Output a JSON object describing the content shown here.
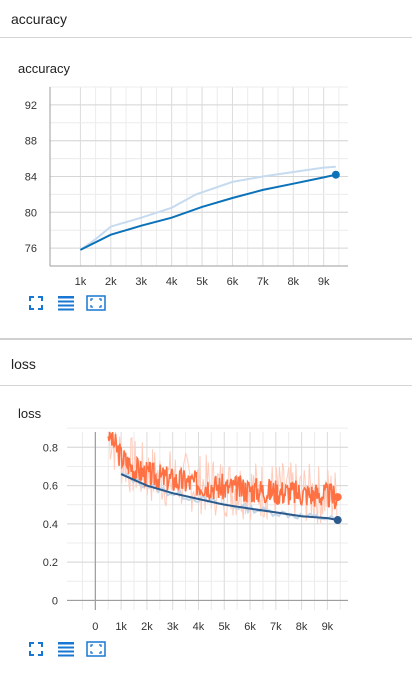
{
  "sections": [
    {
      "header": "accuracy",
      "card_title": "accuracy"
    },
    {
      "header": "loss",
      "card_title": "loss"
    }
  ],
  "colors": {
    "accuracy_line": "#0b72b9",
    "accuracy_smooth_bg": "#c6dbef",
    "loss_train": "#ff7043",
    "loss_train_raw": "#ffccbc",
    "loss_val": "#2b5a8c",
    "icon": "#1976d2"
  },
  "icons": [
    "expand-icon",
    "data-table-icon",
    "fit-domain-icon"
  ],
  "chart_data": [
    {
      "type": "line",
      "title": "accuracy",
      "xticks": [
        "1k",
        "2k",
        "3k",
        "4k",
        "5k",
        "6k",
        "7k",
        "8k",
        "9k"
      ],
      "yticks": [
        "76",
        "80",
        "84",
        "88",
        "92"
      ],
      "xlim": [
        0,
        9800
      ],
      "ylim": [
        74,
        94
      ],
      "grid": true,
      "series": [
        {
          "role": "smoothed",
          "x": [
            1000,
            1500,
            2000,
            3000,
            4000,
            4800,
            6000,
            7000,
            8000,
            9000,
            9400
          ],
          "y": [
            75.8,
            77.0,
            78.4,
            79.4,
            80.5,
            82.0,
            83.4,
            84.0,
            84.5,
            85.0,
            85.1
          ]
        },
        {
          "role": "raw",
          "x": [
            1000,
            2000,
            3000,
            4000,
            5000,
            6000,
            7000,
            8000,
            9000,
            9400
          ],
          "y": [
            75.8,
            77.5,
            78.5,
            79.4,
            80.6,
            81.6,
            82.5,
            83.2,
            83.9,
            84.2
          ]
        }
      ]
    },
    {
      "type": "line",
      "title": "loss",
      "xticks": [
        "0",
        "1k",
        "2k",
        "3k",
        "4k",
        "5k",
        "6k",
        "7k",
        "8k",
        "9k"
      ],
      "yticks": [
        "0",
        "0.2",
        "0.4",
        "0.6",
        "0.8"
      ],
      "xlim": [
        -1100,
        9800
      ],
      "ylim": [
        -0.05,
        0.88
      ],
      "grid": true,
      "series": [
        {
          "role": "train",
          "x": [
            500,
            1000,
            1500,
            2000,
            3000,
            4000,
            5000,
            6000,
            7000,
            8000,
            9000,
            9400
          ],
          "y": [
            0.88,
            0.75,
            0.69,
            0.66,
            0.63,
            0.61,
            0.59,
            0.58,
            0.57,
            0.56,
            0.55,
            0.54
          ]
        },
        {
          "role": "validation",
          "x": [
            1000,
            2000,
            3000,
            4000,
            5000,
            6000,
            7000,
            8000,
            9000,
            9400
          ],
          "y": [
            0.66,
            0.6,
            0.56,
            0.53,
            0.5,
            0.48,
            0.46,
            0.44,
            0.43,
            0.42
          ]
        }
      ]
    }
  ]
}
